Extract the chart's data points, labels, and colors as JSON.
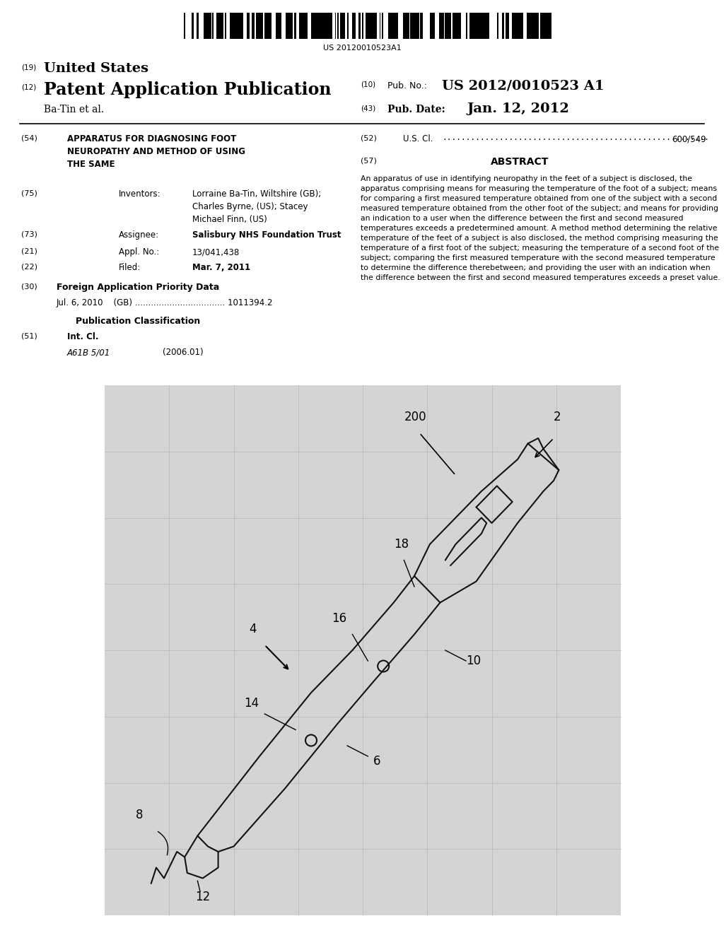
{
  "background_color": "#ffffff",
  "barcode_text": "US 20120010523A1",
  "header_19": "(19)",
  "header_19_text": "United States",
  "header_12": "(12)",
  "header_12_text": "Patent Application Publication",
  "header_author": "Ba-Tin et al.",
  "header_10": "(10)",
  "header_10_text": "Pub. No.:",
  "header_10_value": "US 2012/0010523 A1",
  "header_43": "(43)",
  "header_43_text": "Pub. Date:",
  "header_43_value": "Jan. 12, 2012",
  "field_54_label": "(54)",
  "field_54_title": "APPARATUS FOR DIAGNOSING FOOT\nNEUROPATHY AND METHOD OF USING\nTHE SAME",
  "field_75_label": "(75)",
  "field_75_name": "Inventors:",
  "field_75_value": "Lorraine Ba-Tin, Wiltshire (GB);\nCharles Byrne, (US); Stacey\nMichael Finn, (US)",
  "field_73_label": "(73)",
  "field_73_name": "Assignee:",
  "field_73_value": "Salisbury NHS Foundation Trust",
  "field_21_label": "(21)",
  "field_21_name": "Appl. No.:",
  "field_21_value": "13/041,438",
  "field_22_label": "(22)",
  "field_22_name": "Filed:",
  "field_22_value": "Mar. 7, 2011",
  "field_30_label": "(30)",
  "field_30_title": "Foreign Application Priority Data",
  "field_30_data": "Jul. 6, 2010    (GB) .................................. 1011394.2",
  "pub_class_title": "Publication Classification",
  "field_51_label": "(51)",
  "field_51_name": "Int. Cl.",
  "field_51_class": "A61B 5/01",
  "field_51_year": "(2006.01)",
  "field_52_label": "(52)",
  "field_52_name": "U.S. Cl.",
  "field_52_dots": "........................................................",
  "field_52_value": "600/549",
  "field_57_label": "(57)",
  "field_57_title": "ABSTRACT",
  "abstract_text": "An apparatus of use in identifying neuropathy in the feet of a subject is disclosed, the apparatus comprising means for measuring the temperature of the foot of a subject; means for comparing a first measured temperature obtained from one of the subject with a second measured temperature obtained from the other foot of the subject; and means for providing an indication to a user when the difference between the first and second measured temperatures exceeds a predetermined amount. A method method determining the relative temperature of the feet of a subject is also disclosed, the method comprising measuring the temperature of a first foot of the subject; measuring the temperature of a second foot of the subject; comparing the first measured temperature with the second measured temperature to determine the difference therebetween; and providing the user with an indication when the difference between the first and second measured temperatures exceeds a preset value.",
  "image_bg_color": "#d4d4d4"
}
